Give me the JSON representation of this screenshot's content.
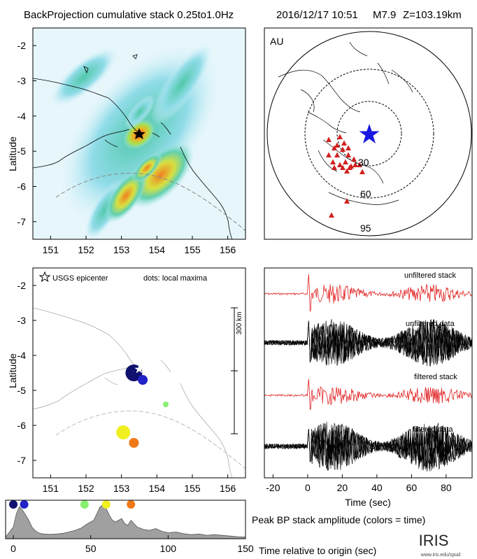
{
  "header": {
    "title": "BackProjection cumulative stack 0.25to1.0Hz",
    "event": "2016/12/17 10:51",
    "magnitude": "M7.9",
    "depth": "Z=103.19km"
  },
  "beam_map": {
    "ylabel": "Latitude",
    "yticks": [
      "-2",
      "-3",
      "-4",
      "-5",
      "-6",
      "-7"
    ],
    "xticks": [
      "151",
      "152",
      "153",
      "154",
      "155",
      "156"
    ]
  },
  "array_map": {
    "label": "AU",
    "distance_rings": [
      "30",
      "60",
      "95"
    ]
  },
  "maxima_map": {
    "ylabel": "Latitude",
    "legend_epicenter": "USGS epicenter",
    "legend_dots": "dots: local maxima",
    "scale_label": "300 km",
    "yticks": [
      "-2",
      "-3",
      "-4",
      "-5",
      "-6",
      "-7"
    ],
    "xticks": [
      "151",
      "152",
      "153",
      "154",
      "155",
      "156"
    ],
    "maxima": [
      {
        "lon": 153.35,
        "lat": -4.5,
        "t": 3,
        "color": "#10106e"
      },
      {
        "lon": 153.6,
        "lat": -4.7,
        "t": 9,
        "color": "#2222c8"
      },
      {
        "lon": 154.25,
        "lat": -5.4,
        "t": 48,
        "color": "#88f070"
      },
      {
        "lon": 153.05,
        "lat": -6.2,
        "t": 60,
        "color": "#f0f020"
      },
      {
        "lon": 153.35,
        "lat": -6.5,
        "t": 76,
        "color": "#f07818"
      }
    ]
  },
  "traces": {
    "labels": [
      "unfiltered stack",
      "unfiltered data",
      "filtered stack",
      "filtered data"
    ],
    "xlabel": "Time (sec)",
    "xticks": [
      "-20",
      "0",
      "20",
      "40",
      "60",
      "80"
    ]
  },
  "amplitude": {
    "title": "Peak BP stack amplitude (colors = time)",
    "xlabel": "Time relative to origin (sec)",
    "xticks": [
      "0",
      "50",
      "100",
      "150"
    ]
  },
  "logo": {
    "text": "IRIS",
    "url": "www.iris.edu/spud"
  },
  "chart_data": {
    "type": "area",
    "title": "Peak BP stack amplitude (colors = time)",
    "xlabel": "Time relative to origin (sec)",
    "xlim": [
      -5,
      150
    ],
    "x": [
      -5,
      0,
      2,
      4,
      6,
      8,
      10,
      12,
      14,
      16,
      18,
      20,
      24,
      28,
      32,
      36,
      40,
      44,
      48,
      50,
      52,
      54,
      56,
      58,
      60,
      62,
      64,
      66,
      68,
      70,
      72,
      74,
      76,
      78,
      80,
      84,
      88,
      92,
      96,
      100,
      105,
      110,
      115,
      120,
      125,
      130,
      135,
      140,
      145,
      150
    ],
    "values": [
      0.05,
      0.35,
      0.75,
      0.95,
      0.85,
      0.7,
      0.55,
      0.35,
      0.25,
      0.18,
      0.15,
      0.14,
      0.13,
      0.14,
      0.16,
      0.2,
      0.25,
      0.32,
      0.45,
      0.5,
      0.55,
      0.75,
      0.95,
      1.0,
      0.9,
      0.7,
      0.55,
      0.5,
      0.55,
      0.6,
      0.45,
      0.4,
      0.55,
      0.45,
      0.35,
      0.28,
      0.25,
      0.3,
      0.22,
      0.18,
      0.2,
      0.15,
      0.12,
      0.14,
      0.1,
      0.12,
      0.1,
      0.08,
      0.06,
      0.05
    ],
    "peak_markers": [
      {
        "t": 0,
        "color": "#10106e"
      },
      {
        "t": 7,
        "color": "#2222c8"
      },
      {
        "t": 46,
        "color": "#88f070"
      },
      {
        "t": 60,
        "color": "#f0f020"
      },
      {
        "t": 76,
        "color": "#f07818"
      }
    ]
  }
}
